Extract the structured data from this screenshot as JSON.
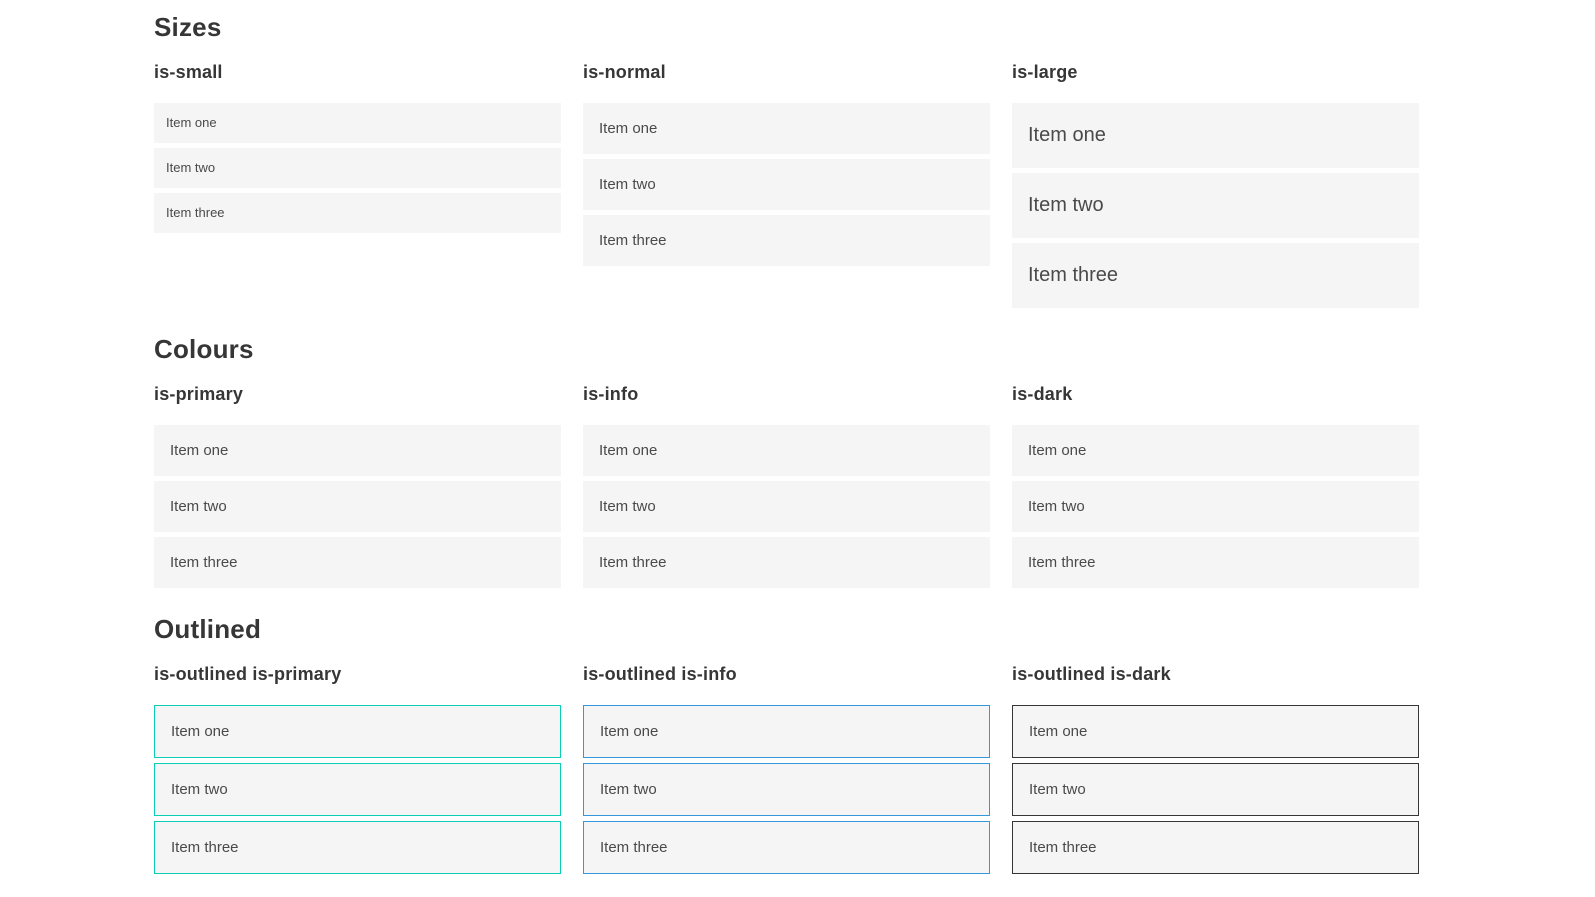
{
  "colors": {
    "primary": "#0cceb5",
    "info": "#3499dc",
    "dark": "#363636",
    "item_background": "#f5f5f5",
    "item_text": "#4a4a4a",
    "heading_text": "#363636"
  },
  "sections": [
    {
      "title": "Sizes",
      "groups": [
        {
          "label": "is-small",
          "variant": "small",
          "items": [
            "Item one",
            "Item two",
            "Item three"
          ]
        },
        {
          "label": "is-normal",
          "variant": "normal",
          "items": [
            "Item one",
            "Item two",
            "Item three"
          ]
        },
        {
          "label": "is-large",
          "variant": "large",
          "items": [
            "Item one",
            "Item two",
            "Item three"
          ]
        }
      ]
    },
    {
      "title": "Colours",
      "groups": [
        {
          "label": "is-primary",
          "variant": "primary",
          "items": [
            "Item one",
            "Item two",
            "Item three"
          ]
        },
        {
          "label": "is-info",
          "variant": "info",
          "items": [
            "Item one",
            "Item two",
            "Item three"
          ]
        },
        {
          "label": "is-dark",
          "variant": "dark",
          "items": [
            "Item one",
            "Item two",
            "Item three"
          ]
        }
      ]
    },
    {
      "title": "Outlined",
      "groups": [
        {
          "label": "is-outlined is-primary",
          "variant": "outlined-primary",
          "items": [
            "Item one",
            "Item two",
            "Item three"
          ]
        },
        {
          "label": "is-outlined is-info",
          "variant": "outlined-info",
          "items": [
            "Item one",
            "Item two",
            "Item three"
          ]
        },
        {
          "label": "is-outlined is-dark",
          "variant": "outlined-dark",
          "items": [
            "Item one",
            "Item two",
            "Item three"
          ]
        }
      ]
    }
  ]
}
